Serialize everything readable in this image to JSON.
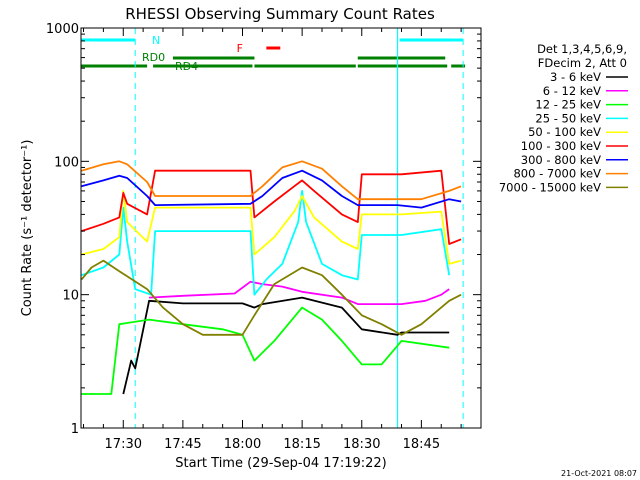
{
  "chart_data": {
    "type": "line",
    "title": "RHESSI Observing Summary Count Rates",
    "xlabel": "Start Time (29-Sep-04 17:19:22)",
    "ylabel": "Count Rate (s⁻¹ detector⁻¹)",
    "yscale": "log",
    "ylim": [
      1,
      1000
    ],
    "xlim": [
      "17:19:22",
      "19:00:00"
    ],
    "y_ticks": [
      "1",
      "10",
      "100",
      "1000"
    ],
    "x_ticks": [
      "17:30",
      "17:45",
      "18:00",
      "18:15",
      "18:30",
      "18:45"
    ],
    "legend_header": [
      "Det 1,3,4,5,6,9,",
      "FDecim 2, Att 0"
    ],
    "legend_position": "right",
    "timestamp": "21-Oct-2021 08:07",
    "flags": [
      {
        "label": "N",
        "color": "#00ffff",
        "intervals": [
          [
            "17:19:22",
            "17:33:00"
          ],
          [
            "18:39:30",
            "18:55:30"
          ]
        ]
      },
      {
        "label": "RD0",
        "color": "#008000",
        "intervals": [
          [
            "17:42:30",
            "18:03:00"
          ],
          [
            "18:29:00",
            "18:51:00"
          ]
        ]
      },
      {
        "label": "RD4",
        "color": "#008000",
        "intervals": [
          [
            "17:19:22",
            "17:36:00"
          ],
          [
            "17:37:30",
            "18:02:30"
          ],
          [
            "18:03:00",
            "18:28:30"
          ],
          [
            "18:29:00",
            "18:51:30"
          ],
          [
            "18:52:30",
            "18:56:00"
          ]
        ]
      },
      {
        "label": "F",
        "color": "#ff0000",
        "intervals": [
          [
            "18:06:00",
            "18:09:30"
          ]
        ]
      }
    ],
    "dashed_markers": [
      {
        "time": "17:33:00",
        "color": "#00ffff"
      },
      {
        "time": "18:55:30",
        "color": "#00ffff"
      }
    ],
    "solid_markers": [
      {
        "time": "18:39:00",
        "color": "#00ffff"
      }
    ],
    "series": [
      {
        "name": "3 - 6 keV",
        "color": "#000000",
        "points": [
          [
            "17:30:00",
            1.8
          ],
          [
            "17:32:00",
            3.2
          ],
          [
            "17:33:00",
            2.8
          ],
          [
            "17:36:30",
            9.0
          ],
          [
            "17:45:00",
            8.6
          ],
          [
            "18:00:00",
            8.6
          ],
          [
            "18:03:00",
            8.0
          ],
          [
            "18:05:00",
            8.5
          ],
          [
            "18:15:00",
            9.5
          ],
          [
            "18:25:00",
            8.0
          ],
          [
            "18:30:00",
            5.5
          ],
          [
            "18:39:00",
            5.0
          ],
          [
            "18:40:00",
            5.2
          ],
          [
            "18:52:00",
            5.2
          ]
        ]
      },
      {
        "name": "6 - 12 keV",
        "color": "#ff00ff",
        "points": [
          [
            "17:36:30",
            9.5
          ],
          [
            "17:45:00",
            9.8
          ],
          [
            "17:58:00",
            10.2
          ],
          [
            "18:02:00",
            12.5
          ],
          [
            "18:05:00",
            12.0
          ],
          [
            "18:10:00",
            11.5
          ],
          [
            "18:15:00",
            10.5
          ],
          [
            "18:25:00",
            9.5
          ],
          [
            "18:29:00",
            8.5
          ],
          [
            "18:40:00",
            8.5
          ],
          [
            "18:46:00",
            9.0
          ],
          [
            "18:50:00",
            10.0
          ],
          [
            "18:52:00",
            11.0
          ]
        ]
      },
      {
        "name": "12 - 25 keV",
        "color": "#00ff00",
        "points": [
          [
            "17:19:30",
            1.8
          ],
          [
            "17:27:00",
            1.8
          ],
          [
            "17:29:00",
            6.0
          ],
          [
            "17:36:30",
            6.5
          ],
          [
            "17:45:00",
            6.0
          ],
          [
            "17:55:00",
            5.5
          ],
          [
            "18:00:00",
            5.0
          ],
          [
            "18:03:00",
            3.2
          ],
          [
            "18:08:00",
            4.5
          ],
          [
            "18:15:00",
            8.0
          ],
          [
            "18:20:00",
            6.5
          ],
          [
            "18:25:00",
            4.5
          ],
          [
            "18:30:00",
            3.0
          ],
          [
            "18:35:00",
            3.0
          ],
          [
            "18:40:00",
            4.5
          ],
          [
            "18:52:00",
            4.0
          ]
        ]
      },
      {
        "name": "25 - 50 keV",
        "color": "#00ffff",
        "points": [
          [
            "17:19:30",
            14.0
          ],
          [
            "17:25:00",
            16.0
          ],
          [
            "17:29:00",
            20.0
          ],
          [
            "17:30:00",
            45.0
          ],
          [
            "17:31:00",
            25.0
          ],
          [
            "17:33:00",
            11.0
          ],
          [
            "17:37:00",
            10.0
          ],
          [
            "17:38:00",
            30.0
          ],
          [
            "18:02:00",
            30.0
          ],
          [
            "18:03:00",
            10.0
          ],
          [
            "18:06:00",
            13.0
          ],
          [
            "18:10:00",
            17.0
          ],
          [
            "18:14:00",
            35.0
          ],
          [
            "18:15:00",
            60.0
          ],
          [
            "18:16:00",
            35.0
          ],
          [
            "18:20:00",
            17.0
          ],
          [
            "18:25:00",
            14.0
          ],
          [
            "18:29:00",
            13.0
          ],
          [
            "18:30:00",
            28.0
          ],
          [
            "18:39:00",
            28.0
          ],
          [
            "18:40:00",
            28.0
          ],
          [
            "18:50:00",
            31.0
          ],
          [
            "18:52:00",
            14.0
          ]
        ]
      },
      {
        "name": "50 - 100 keV",
        "color": "#ffff00",
        "points": [
          [
            "17:19:30",
            20.0
          ],
          [
            "17:25:00",
            22.0
          ],
          [
            "17:29:00",
            27.0
          ],
          [
            "17:30:00",
            60.0
          ],
          [
            "17:31:00",
            35.0
          ],
          [
            "17:36:00",
            25.0
          ],
          [
            "17:38:00",
            45.0
          ],
          [
            "18:02:00",
            45.0
          ],
          [
            "18:03:00",
            20.0
          ],
          [
            "18:08:00",
            27.0
          ],
          [
            "18:13:00",
            42.0
          ],
          [
            "18:15:00",
            55.0
          ],
          [
            "18:18:00",
            38.0
          ],
          [
            "18:25:00",
            25.0
          ],
          [
            "18:29:00",
            22.0
          ],
          [
            "18:30:00",
            40.0
          ],
          [
            "18:39:00",
            40.0
          ],
          [
            "18:40:00",
            40.0
          ],
          [
            "18:50:00",
            42.0
          ],
          [
            "18:52:00",
            17.0
          ],
          [
            "18:55:00",
            18.0
          ]
        ]
      },
      {
        "name": "100 - 300 keV",
        "color": "#ff0000",
        "points": [
          [
            "17:19:30",
            30.0
          ],
          [
            "17:25:00",
            34.0
          ],
          [
            "17:29:00",
            38.0
          ],
          [
            "17:30:00",
            58.0
          ],
          [
            "17:31:00",
            48.0
          ],
          [
            "17:36:00",
            40.0
          ],
          [
            "17:38:00",
            85.0
          ],
          [
            "18:02:00",
            85.0
          ],
          [
            "18:03:00",
            38.0
          ],
          [
            "18:08:00",
            50.0
          ],
          [
            "18:13:00",
            65.0
          ],
          [
            "18:15:00",
            72.0
          ],
          [
            "18:18:00",
            60.0
          ],
          [
            "18:25:00",
            40.0
          ],
          [
            "18:29:00",
            35.0
          ],
          [
            "18:30:00",
            80.0
          ],
          [
            "18:39:00",
            80.0
          ],
          [
            "18:40:00",
            80.0
          ],
          [
            "18:50:00",
            85.0
          ],
          [
            "18:52:00",
            24.0
          ],
          [
            "18:55:00",
            26.0
          ]
        ]
      },
      {
        "name": "300 - 800 keV",
        "color": "#0000ff",
        "points": [
          [
            "17:19:30",
            65.0
          ],
          [
            "17:25:00",
            72.0
          ],
          [
            "17:29:00",
            78.0
          ],
          [
            "17:31:00",
            75.0
          ],
          [
            "17:36:00",
            55.0
          ],
          [
            "17:38:00",
            47.0
          ],
          [
            "18:02:00",
            48.0
          ],
          [
            "18:05:00",
            55.0
          ],
          [
            "18:10:00",
            75.0
          ],
          [
            "18:15:00",
            85.0
          ],
          [
            "18:20:00",
            72.0
          ],
          [
            "18:25:00",
            55.0
          ],
          [
            "18:29:00",
            47.0
          ],
          [
            "18:39:00",
            47.0
          ],
          [
            "18:45:00",
            45.0
          ],
          [
            "18:52:00",
            52.0
          ],
          [
            "18:55:00",
            50.0
          ]
        ]
      },
      {
        "name": "800 - 7000 keV",
        "color": "#ff8000",
        "points": [
          [
            "17:19:30",
            85.0
          ],
          [
            "17:25:00",
            95.0
          ],
          [
            "17:29:00",
            100.0
          ],
          [
            "17:31:00",
            95.0
          ],
          [
            "17:36:00",
            70.0
          ],
          [
            "17:38:00",
            55.0
          ],
          [
            "18:02:00",
            55.0
          ],
          [
            "18:05:00",
            65.0
          ],
          [
            "18:10:00",
            90.0
          ],
          [
            "18:15:00",
            100.0
          ],
          [
            "18:20:00",
            88.0
          ],
          [
            "18:25:00",
            65.0
          ],
          [
            "18:29:00",
            52.0
          ],
          [
            "18:39:00",
            52.0
          ],
          [
            "18:45:00",
            52.0
          ],
          [
            "18:52:00",
            60.0
          ],
          [
            "18:55:00",
            65.0
          ]
        ]
      },
      {
        "name": "7000 - 15000 keV",
        "color": "#808000",
        "points": [
          [
            "17:19:30",
            13.0
          ],
          [
            "17:22:00",
            16.0
          ],
          [
            "17:25:00",
            18.0
          ],
          [
            "17:29:00",
            15.0
          ],
          [
            "17:36:00",
            11.0
          ],
          [
            "17:40:00",
            8.0
          ],
          [
            "17:45:00",
            6.0
          ],
          [
            "17:50:00",
            5.0
          ],
          [
            "18:00:00",
            5.0
          ],
          [
            "18:03:00",
            7.0
          ],
          [
            "18:08:00",
            12.0
          ],
          [
            "18:15:00",
            16.0
          ],
          [
            "18:20:00",
            14.0
          ],
          [
            "18:25:00",
            10.0
          ],
          [
            "18:30:00",
            7.0
          ],
          [
            "18:35:00",
            6.0
          ],
          [
            "18:40:00",
            5.0
          ],
          [
            "18:45:00",
            6.0
          ],
          [
            "18:52:00",
            9.0
          ],
          [
            "18:55:00",
            10.0
          ]
        ]
      }
    ]
  }
}
